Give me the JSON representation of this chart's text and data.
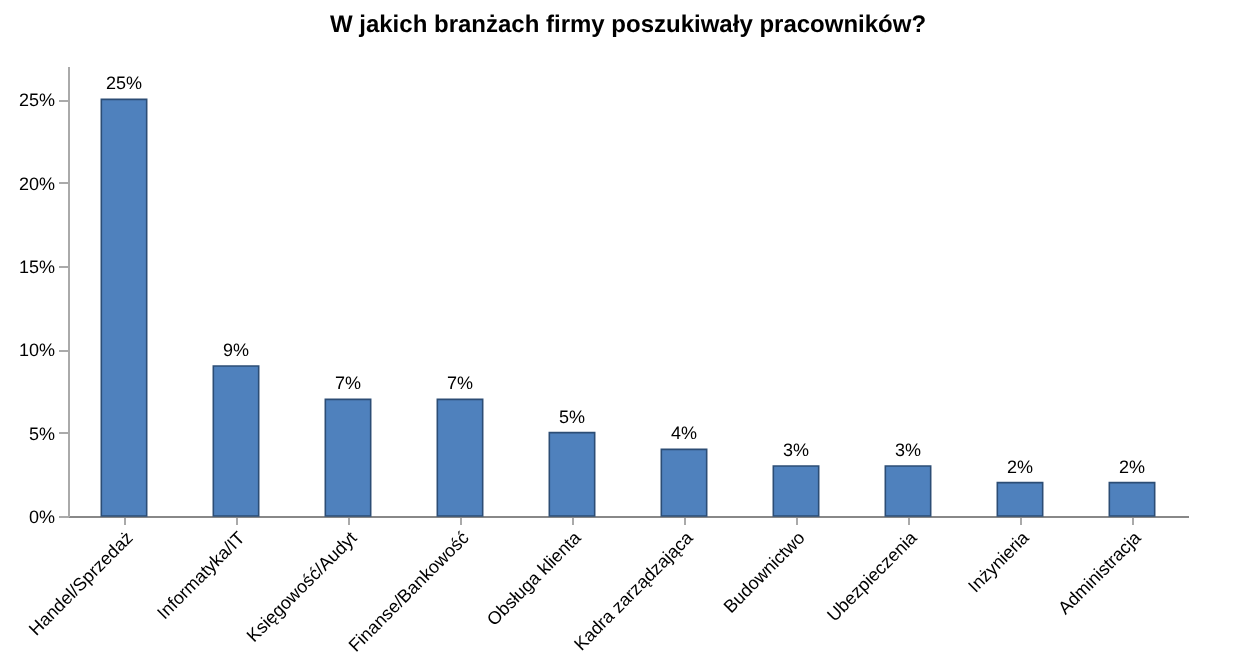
{
  "chart_data": {
    "type": "bar",
    "title": "W jakich branżach firmy poszukiwały pracowników?",
    "categories": [
      "Handel/Sprzedaż",
      "Informatyka/IT",
      "Księgowość/Audyt",
      "Finanse/Bankowość",
      "Obsługa klienta",
      "Kadra zarządzająca",
      "Budownictwo",
      "Ubezpieczenia",
      "Inżynieria",
      "Administracja"
    ],
    "values": [
      25,
      9,
      7,
      7,
      5,
      4,
      3,
      3,
      2,
      2
    ],
    "value_labels": [
      "25%",
      "9%",
      "7%",
      "7%",
      "5%",
      "4%",
      "3%",
      "3%",
      "2%",
      "2%"
    ],
    "color": "#4f81bd",
    "ylim": [
      0,
      27
    ],
    "yticks": [
      {
        "value": 0,
        "label": "0%"
      },
      {
        "value": 5,
        "label": "5%"
      },
      {
        "value": 10,
        "label": "10%"
      },
      {
        "value": 15,
        "label": "15%"
      },
      {
        "value": 20,
        "label": "20%"
      },
      {
        "value": 25,
        "label": "25%"
      }
    ],
    "grid": false
  }
}
